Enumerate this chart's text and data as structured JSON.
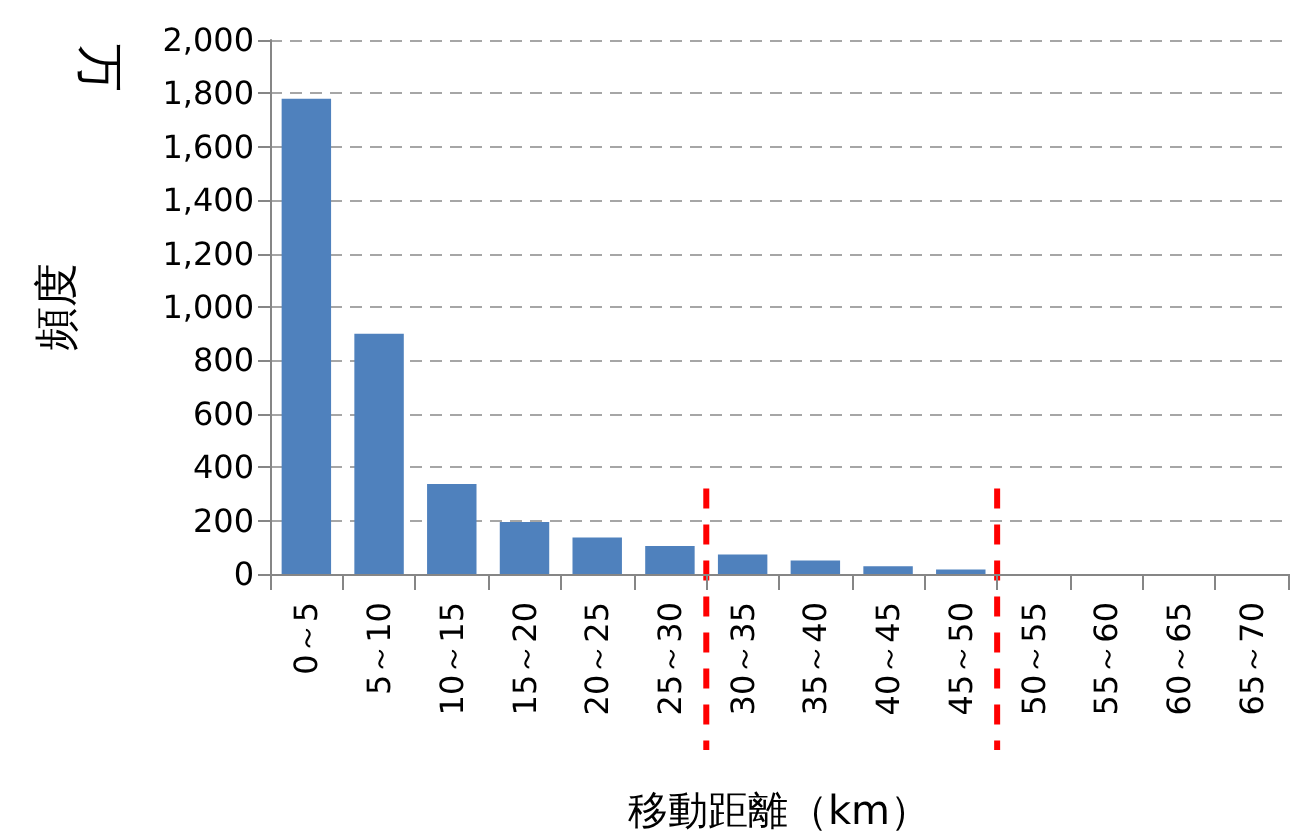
{
  "chart_data": {
    "type": "bar",
    "xlabel": "移動距離（km）",
    "ylabel": "頻度",
    "annotations": [
      "万"
    ],
    "categories": [
      "0～5",
      "5～10",
      "10～15",
      "15～20",
      "20～25",
      "25～30",
      "30～35",
      "35～40",
      "40～45",
      "45～50",
      "50～55",
      "55～60",
      "60～65",
      "65～70"
    ],
    "values": [
      1780,
      900,
      337,
      195,
      137,
      105,
      73,
      51,
      29,
      17,
      0,
      0,
      0,
      0
    ],
    "color": "#4f81bd",
    "ylim": [
      0,
      2000
    ],
    "yticks": [
      {
        "value": 0,
        "label": "0"
      },
      {
        "value": 200,
        "label": "200"
      },
      {
        "value": 400,
        "label": "400"
      },
      {
        "value": 600,
        "label": "600"
      },
      {
        "value": 800,
        "label": "800"
      },
      {
        "value": 1000,
        "label": "1,000"
      },
      {
        "value": 1200,
        "label": "1,200"
      },
      {
        "value": 1400,
        "label": "1,400"
      },
      {
        "value": 1600,
        "label": "1,600"
      },
      {
        "value": 1800,
        "label": "1,800"
      },
      {
        "value": 2000,
        "label": "2,000"
      }
    ],
    "grid": "y",
    "ref_lines": [
      {
        "axis": "x",
        "value": "30～35",
        "color": "#ff0000",
        "line_style": "dashed"
      },
      {
        "axis": "x",
        "value": "50～55",
        "color": "#ff0000",
        "line_style": "dashed"
      }
    ]
  }
}
